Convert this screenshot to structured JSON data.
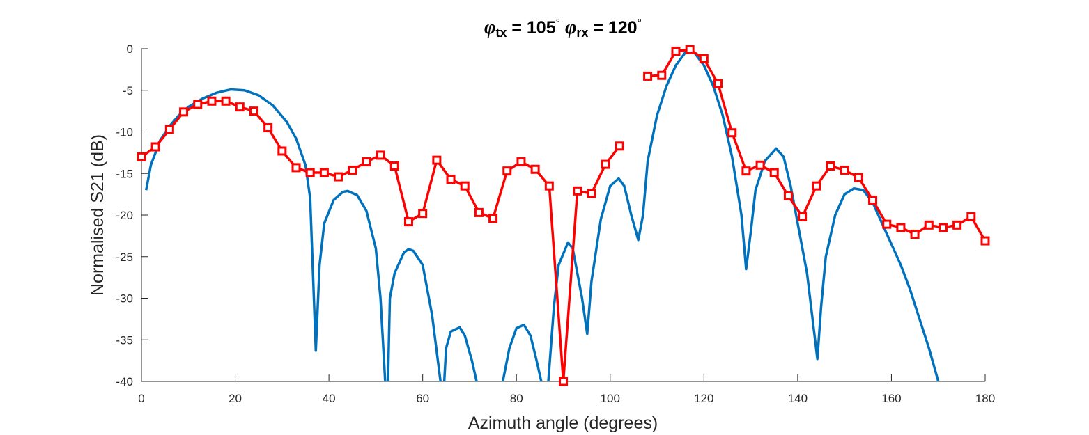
{
  "chart_data": {
    "type": "line",
    "title": [
      {
        "text": "φ",
        "style": "italic"
      },
      {
        "text": "tx",
        "style": "sub"
      },
      {
        "text": " = 105",
        "style": "normal"
      },
      {
        "text": "°",
        "style": "sup"
      },
      {
        "text": "  ",
        "style": "normal"
      },
      {
        "text": "φ",
        "style": "italic"
      },
      {
        "text": "rx",
        "style": "sub"
      },
      {
        "text": " = 120",
        "style": "normal"
      },
      {
        "text": "°",
        "style": "sup"
      }
    ],
    "xlabel": "Azimuth angle (degrees)",
    "ylabel": "Normalised S21 (dB)",
    "xlim": [
      0,
      180
    ],
    "ylim": [
      -40,
      0
    ],
    "xticks": [
      0,
      20,
      40,
      60,
      80,
      100,
      120,
      140,
      160,
      180
    ],
    "yticks": [
      -40,
      -35,
      -30,
      -25,
      -20,
      -15,
      -10,
      -5,
      0
    ],
    "series": [
      {
        "color": "#0072bd",
        "marker": "none",
        "x": [
          1,
          2,
          4,
          6,
          8,
          10,
          13,
          16,
          19,
          22,
          25,
          28,
          31,
          33,
          35,
          36,
          37.2,
          38,
          39,
          41,
          43,
          44,
          46,
          48,
          50,
          51,
          52,
          null,
          52.6,
          53,
          54,
          56,
          57,
          58,
          60,
          62,
          63.8,
          null,
          64.6,
          65,
          66,
          67.9,
          69,
          70.5,
          71.5,
          null,
          77.1,
          78.5,
          80,
          81.6,
          83,
          84.3,
          85.3,
          null,
          86.8,
          88,
          89,
          91,
          92,
          94,
          95.1,
          96,
          98,
          100,
          101.8,
          103,
          104.5,
          106,
          107,
          108,
          110,
          112,
          114,
          116.5,
          118,
          120,
          122,
          124,
          126,
          128,
          129,
          130,
          131,
          133,
          135.4,
          137,
          138.5,
          140,
          142,
          144.2,
          145,
          146,
          148,
          150,
          152,
          154,
          156,
          158,
          160,
          162,
          164,
          166,
          168,
          170
        ],
        "values": [
          -17,
          -14,
          -11,
          -9.3,
          -8,
          -7,
          -6,
          -5.3,
          -4.9,
          -5,
          -5.6,
          -6.8,
          -8.8,
          -10.8,
          -14,
          -18,
          -36.3,
          -26,
          -21,
          -18.2,
          -17.2,
          -17.1,
          -17.6,
          -19.5,
          -24,
          -30,
          -40,
          null,
          -40,
          -30,
          -27,
          -24.5,
          -24.1,
          -24.3,
          -26,
          -32,
          -40,
          null,
          -40,
          -36,
          -34,
          -33.5,
          -34.5,
          -37.5,
          -40,
          null,
          -40,
          -36,
          -33.6,
          -33.2,
          -34.5,
          -37.5,
          -40,
          null,
          -40,
          -31,
          -26,
          -23.3,
          -24,
          -30,
          -34.3,
          -28,
          -20.5,
          -16.5,
          -15.6,
          -16.5,
          -20,
          -23,
          -20,
          -13.5,
          -8,
          -4.5,
          -2,
          -0.1,
          -0.5,
          -2,
          -4.5,
          -8,
          -13,
          -20,
          -26.5,
          -22,
          -17,
          -13.5,
          -12,
          -13,
          -16.5,
          -21,
          -27,
          -37.3,
          -31,
          -25,
          -20,
          -17.5,
          -16.8,
          -17,
          -18.5,
          -21,
          -23.5,
          -26,
          -29,
          -32.5,
          -36,
          -40
        ]
      },
      {
        "color": "#ff0000",
        "marker": "square",
        "x": [
          0,
          3,
          6,
          9,
          12,
          15,
          18,
          21,
          24,
          27,
          30,
          33,
          36,
          39,
          42,
          45,
          48,
          51,
          54,
          57,
          60,
          63,
          66,
          69,
          72,
          75,
          78,
          81,
          84,
          87,
          90,
          93,
          96,
          99,
          102,
          105,
          108,
          111,
          114,
          117,
          120,
          123,
          126,
          129,
          132,
          135,
          138,
          141,
          144,
          147,
          150,
          153,
          156,
          159,
          162,
          165,
          168,
          171,
          174,
          177,
          180
        ],
        "values": [
          -13.0,
          -11.8,
          -9.7,
          -7.6,
          -6.7,
          -6.3,
          -6.3,
          -7.0,
          -7.5,
          -9.5,
          -12.3,
          -14.3,
          -14.9,
          -14.9,
          -15.4,
          -14.6,
          -13.6,
          -12.8,
          -14.1,
          -20.8,
          -19.8,
          -13.4,
          -15.7,
          -16.5,
          -19.7,
          -20.4,
          -14.7,
          -13.6,
          -14.5,
          -16.5,
          -40,
          -17.1,
          -17.4,
          -13.9,
          -11.7,
          null,
          -3.3,
          -3.2,
          -0.3,
          -0.1,
          -1.2,
          -4.2,
          -10.1,
          -14.7,
          -14.0,
          -14.9,
          -17.7,
          -20.2,
          -16.5,
          -14.1,
          -14.6,
          -15.5,
          -18.2,
          -21.1,
          -21.5,
          -22.3,
          -21.2,
          -21.5,
          -21.2,
          -20.2,
          -23.1
        ]
      }
    ]
  }
}
